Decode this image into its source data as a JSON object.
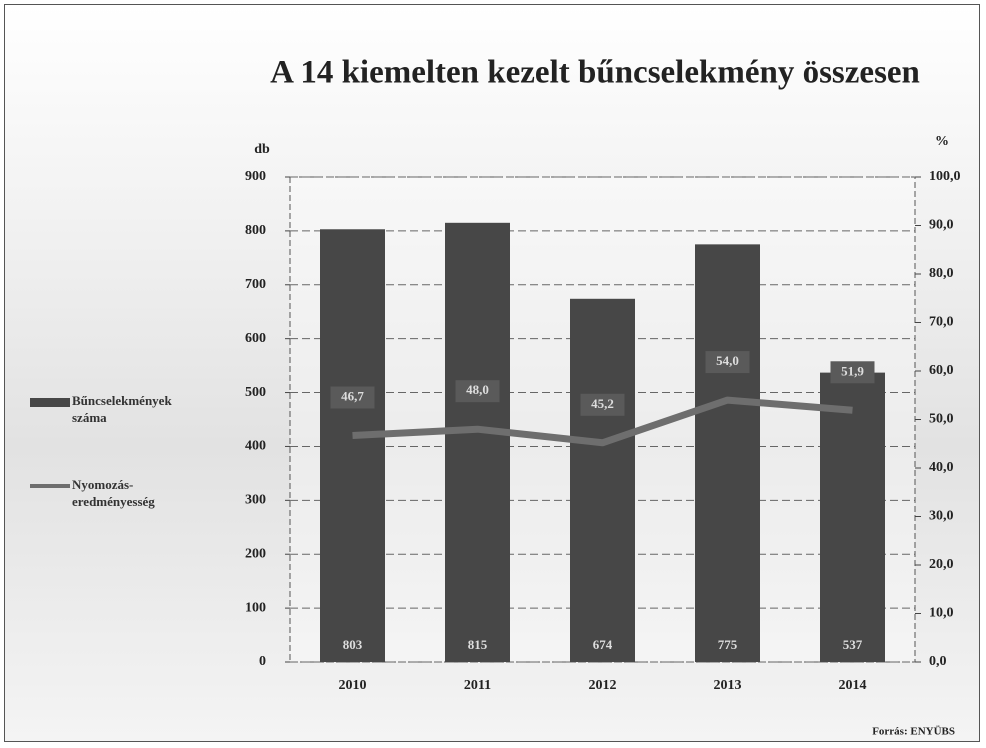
{
  "chart_data": {
    "type": "bar",
    "title": "A 14 kiemelten kezelt bűncselekmény összesen",
    "y_label": "db",
    "y2_label": "%",
    "categories": [
      "2010",
      "2011",
      "2012",
      "2013",
      "2014"
    ],
    "series": [
      {
        "name": "Bűncselekmények száma",
        "type": "bar",
        "color": "#474747",
        "values": [
          803,
          815,
          674,
          775,
          537
        ]
      },
      {
        "name": "Nyomozás-eredményesség",
        "type": "line",
        "axis": "y2",
        "color": "#6e6e6e",
        "values": [
          46.7,
          48.0,
          45.2,
          54.0,
          51.9
        ],
        "value_labels": [
          "46,7",
          "48,0",
          "45,2",
          "54,0",
          "51,9"
        ]
      }
    ],
    "ylim": [
      0,
      900
    ],
    "yticks": [
      0,
      100,
      200,
      300,
      400,
      500,
      600,
      700,
      800,
      900
    ],
    "y2lim": [
      0,
      100
    ],
    "y2ticks": [
      {
        "value": 0,
        "label": "0,0"
      },
      {
        "value": 10,
        "label": "10,0"
      },
      {
        "value": 20,
        "label": "20,0"
      },
      {
        "value": 30,
        "label": "30,0"
      },
      {
        "value": 40,
        "label": "40,0"
      },
      {
        "value": 50,
        "label": "50,0"
      },
      {
        "value": 60,
        "label": "60,0"
      },
      {
        "value": 70,
        "label": "70,0"
      },
      {
        "value": 80,
        "label": "80,0"
      },
      {
        "value": 90,
        "label": "90,0"
      },
      {
        "value": 100,
        "label": "100,0"
      }
    ],
    "grid": true,
    "source": "Forrás: ENYÜBS"
  }
}
